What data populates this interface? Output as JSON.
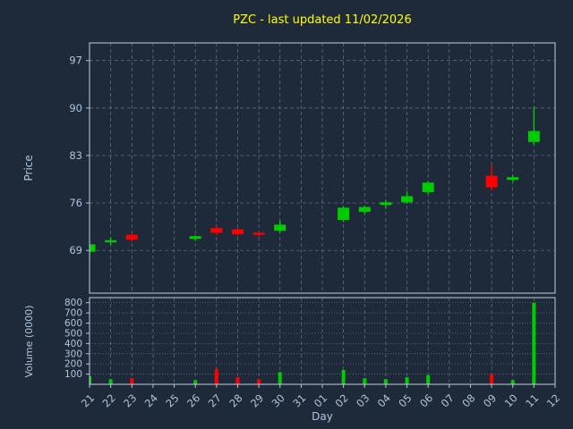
{
  "chart": {
    "title": "PZC - last updated 11/02/2026",
    "price_axis_label": "Price",
    "volume_axis_label": "Volume (0000)",
    "day_axis_label": "Day"
  },
  "chart_data": {
    "type": "candlestick",
    "subplots": [
      "price-candles",
      "volume-bars"
    ],
    "title": "PZC - last updated 11/02/2026",
    "xlabel": "Day",
    "ylabel_price": "Price",
    "ylabel_volume": "Volume (0000)",
    "x_ticks": [
      "21",
      "22",
      "23",
      "24",
      "25",
      "26",
      "27",
      "28",
      "29",
      "30",
      "31",
      "01",
      "02",
      "03",
      "04",
      "05",
      "06",
      "07",
      "08",
      "09",
      "10",
      "11",
      "12"
    ],
    "price_ticks": [
      69,
      76,
      83,
      90,
      97
    ],
    "price_ylim": [
      62.7,
      99.6
    ],
    "volume_ticks": [
      100,
      200,
      300,
      400,
      500,
      600,
      700,
      800
    ],
    "volume_ylim": [
      0,
      850
    ],
    "grid": true,
    "colors": {
      "background": "#1e2a3a",
      "up": "#00cc00",
      "down": "#ff0000",
      "title": "#ffff00",
      "tick": "#b0c4de",
      "grid": "#76889c",
      "spine": "#c3cfdb"
    },
    "candles": [
      {
        "day": "21",
        "open": 68.8,
        "high": 70.3,
        "low": 68.0,
        "close": 69.9,
        "volume": 80
      },
      {
        "day": "22",
        "open": 70.2,
        "high": 70.9,
        "low": 69.8,
        "close": 70.5,
        "volume": 50
      },
      {
        "day": "23",
        "open": 71.3,
        "high": 71.5,
        "low": 70.3,
        "close": 70.6,
        "volume": 60
      },
      {
        "day": "26",
        "open": 70.7,
        "high": 71.2,
        "low": 70.4,
        "close": 71.1,
        "volume": 40
      },
      {
        "day": "27",
        "open": 72.3,
        "high": 72.5,
        "low": 71.3,
        "close": 71.6,
        "volume": 150
      },
      {
        "day": "28",
        "open": 72.1,
        "high": 72.3,
        "low": 71.2,
        "close": 71.4,
        "volume": 70
      },
      {
        "day": "29",
        "open": 71.6,
        "high": 71.8,
        "low": 71.1,
        "close": 71.3,
        "volume": 50
      },
      {
        "day": "30",
        "open": 71.9,
        "high": 73.4,
        "low": 71.6,
        "close": 72.8,
        "volume": 120
      },
      {
        "day": "02",
        "open": 73.5,
        "high": 75.5,
        "low": 73.2,
        "close": 75.3,
        "volume": 140
      },
      {
        "day": "03",
        "open": 74.7,
        "high": 75.6,
        "low": 74.4,
        "close": 75.4,
        "volume": 60
      },
      {
        "day": "04",
        "open": 75.7,
        "high": 76.4,
        "low": 75.2,
        "close": 76.1,
        "volume": 50
      },
      {
        "day": "05",
        "open": 76.1,
        "high": 77.7,
        "low": 75.9,
        "close": 77.0,
        "volume": 70
      },
      {
        "day": "06",
        "open": 77.6,
        "high": 79.2,
        "low": 77.3,
        "close": 79.0,
        "volume": 90
      },
      {
        "day": "09",
        "open": 80.0,
        "high": 81.6,
        "low": 77.9,
        "close": 78.3,
        "volume": 100
      },
      {
        "day": "10",
        "open": 79.4,
        "high": 80.1,
        "low": 79.1,
        "close": 79.8,
        "volume": 40
      },
      {
        "day": "11",
        "open": 85.0,
        "high": 90.2,
        "low": 84.6,
        "close": 86.6,
        "volume": 800
      }
    ]
  }
}
